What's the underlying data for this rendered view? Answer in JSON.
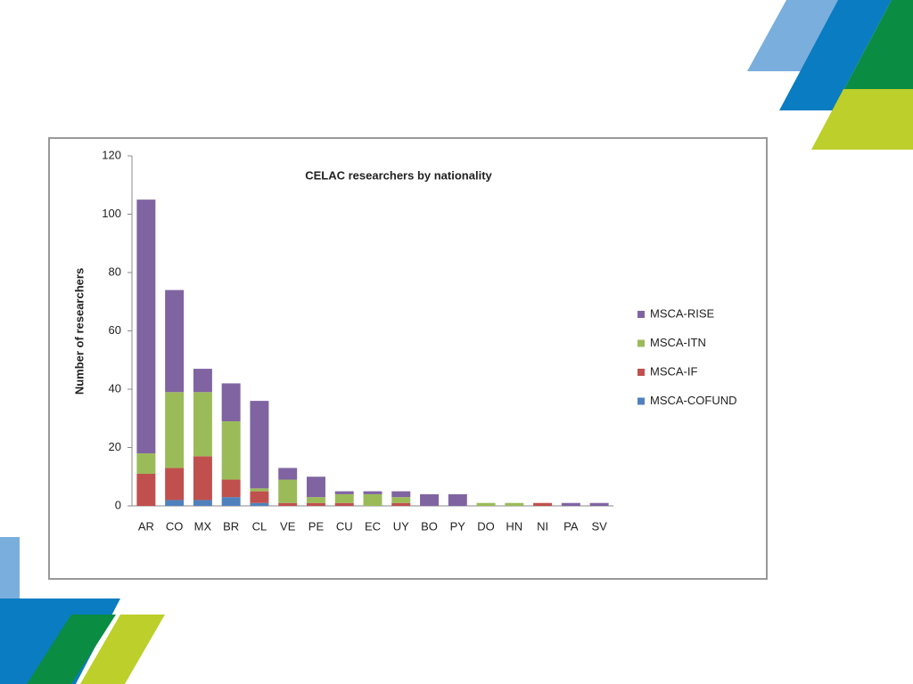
{
  "chart_data": {
    "type": "bar",
    "stacked": true,
    "title": "CELAC researchers by nationality",
    "y_label": "Number of researchers",
    "categories": [
      "AR",
      "CO",
      "MX",
      "BR",
      "CL",
      "VE",
      "PE",
      "CU",
      "EC",
      "UY",
      "BO",
      "PY",
      "DO",
      "HN",
      "NI",
      "PA",
      "SV"
    ],
    "series": [
      {
        "name": "MSCA-COFUND",
        "color": "#4f81bd",
        "values": [
          0,
          2,
          2,
          3,
          1,
          0,
          0,
          0,
          0,
          0,
          0,
          0,
          0,
          0,
          0,
          0,
          0
        ]
      },
      {
        "name": "MSCA-IF",
        "color": "#c0504d",
        "values": [
          11,
          11,
          15,
          6,
          4,
          1,
          1,
          1,
          0,
          1,
          0,
          0,
          0,
          0,
          1,
          0,
          0
        ]
      },
      {
        "name": "MSCA-ITN",
        "color": "#9bbb59",
        "values": [
          7,
          26,
          22,
          20,
          1,
          8,
          2,
          3,
          4,
          2,
          0,
          0,
          1,
          1,
          0,
          0,
          0
        ]
      },
      {
        "name": "MSCA-RISE",
        "color": "#8064a2",
        "values": [
          87,
          35,
          8,
          13,
          30,
          4,
          7,
          1,
          1,
          2,
          4,
          4,
          0,
          0,
          0,
          1,
          1
        ]
      }
    ],
    "ylim": [
      0,
      120
    ],
    "yticks": [
      0,
      20,
      40,
      60,
      80,
      100,
      120
    ],
    "grid": false,
    "legend": "right"
  }
}
